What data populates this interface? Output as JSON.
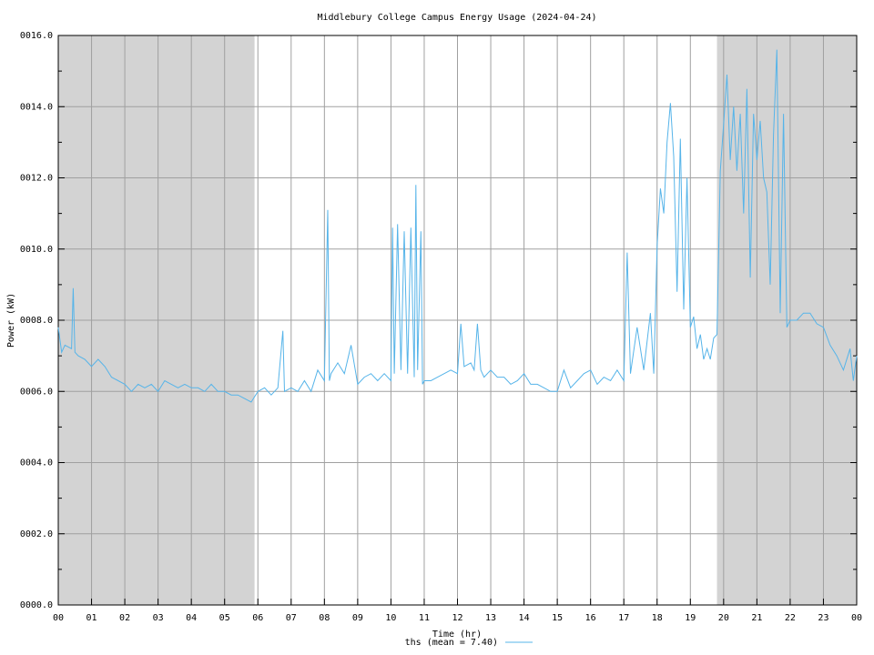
{
  "chart_data": {
    "type": "line",
    "title": "Middlebury College Campus Energy Usage (2024-04-24)",
    "x_label": "Time (hr)",
    "y_label": "Power (kW)",
    "xlim": [
      0,
      24
    ],
    "ylim": [
      0,
      16
    ],
    "xticks": [
      {
        "value": 0,
        "label": "00"
      },
      {
        "value": 1,
        "label": "01"
      },
      {
        "value": 2,
        "label": "02"
      },
      {
        "value": 3,
        "label": "03"
      },
      {
        "value": 4,
        "label": "04"
      },
      {
        "value": 5,
        "label": "05"
      },
      {
        "value": 6,
        "label": "06"
      },
      {
        "value": 7,
        "label": "07"
      },
      {
        "value": 8,
        "label": "08"
      },
      {
        "value": 9,
        "label": "09"
      },
      {
        "value": 10,
        "label": "10"
      },
      {
        "value": 11,
        "label": "11"
      },
      {
        "value": 12,
        "label": "12"
      },
      {
        "value": 13,
        "label": "13"
      },
      {
        "value": 14,
        "label": "14"
      },
      {
        "value": 15,
        "label": "15"
      },
      {
        "value": 16,
        "label": "16"
      },
      {
        "value": 17,
        "label": "17"
      },
      {
        "value": 18,
        "label": "18"
      },
      {
        "value": 19,
        "label": "19"
      },
      {
        "value": 20,
        "label": "20"
      },
      {
        "value": 21,
        "label": "21"
      },
      {
        "value": 22,
        "label": "22"
      },
      {
        "value": 23,
        "label": "23"
      },
      {
        "value": 24,
        "label": "00"
      }
    ],
    "yticks": [
      {
        "value": 0,
        "label": "0000.0"
      },
      {
        "value": 2,
        "label": "0002.0"
      },
      {
        "value": 4,
        "label": "0004.0"
      },
      {
        "value": 6,
        "label": "0006.0"
      },
      {
        "value": 8,
        "label": "0008.0"
      },
      {
        "value": 10,
        "label": "0010.0"
      },
      {
        "value": 12,
        "label": "0012.0"
      },
      {
        "value": 14,
        "label": "0014.0"
      },
      {
        "value": 16,
        "label": "0016.0"
      }
    ],
    "yminorticks": [
      1,
      3,
      5,
      7,
      9,
      11,
      13,
      15
    ],
    "grid": true,
    "shaded_ranges": [
      [
        0,
        5.9
      ],
      [
        19.8,
        24
      ]
    ],
    "shade_color": "#d3d3d3",
    "legend": "bottom",
    "x": [
      0,
      0.1,
      0.2,
      0.4,
      0.45,
      0.5,
      0.6,
      0.8,
      1.0,
      1.2,
      1.4,
      1.6,
      1.8,
      2.0,
      2.2,
      2.4,
      2.6,
      2.8,
      3.0,
      3.2,
      3.4,
      3.6,
      3.8,
      4.0,
      4.2,
      4.4,
      4.6,
      4.8,
      5.0,
      5.2,
      5.4,
      5.6,
      5.8,
      6.0,
      6.2,
      6.4,
      6.6,
      6.75,
      6.8,
      7.0,
      7.2,
      7.4,
      7.6,
      7.8,
      8.0,
      8.1,
      8.15,
      8.2,
      8.4,
      8.6,
      8.8,
      9.0,
      9.2,
      9.4,
      9.6,
      9.8,
      10.0,
      10.05,
      10.1,
      10.2,
      10.3,
      10.4,
      10.5,
      10.6,
      10.7,
      10.75,
      10.8,
      10.9,
      10.95,
      11.0,
      11.2,
      11.4,
      11.6,
      11.8,
      12.0,
      12.1,
      12.2,
      12.4,
      12.5,
      12.6,
      12.7,
      12.8,
      13.0,
      13.2,
      13.4,
      13.6,
      13.8,
      14.0,
      14.2,
      14.4,
      14.6,
      14.8,
      15.0,
      15.2,
      15.4,
      15.6,
      15.8,
      16.0,
      16.2,
      16.4,
      16.6,
      16.8,
      17.0,
      17.1,
      17.2,
      17.4,
      17.6,
      17.8,
      17.9,
      18.0,
      18.1,
      18.2,
      18.3,
      18.4,
      18.5,
      18.6,
      18.7,
      18.8,
      18.9,
      19.0,
      19.1,
      19.2,
      19.3,
      19.4,
      19.5,
      19.6,
      19.7,
      19.8,
      19.9,
      20.0,
      20.1,
      20.2,
      20.3,
      20.4,
      20.5,
      20.6,
      20.7,
      20.8,
      20.9,
      21.0,
      21.1,
      21.2,
      21.3,
      21.4,
      21.5,
      21.6,
      21.7,
      21.8,
      21.9,
      22.0,
      22.2,
      22.4,
      22.6,
      22.8,
      23.0,
      23.2,
      23.4,
      23.6,
      23.8,
      23.9,
      24.0
    ],
    "series": [
      {
        "name": "ths (mean = 7.40)",
        "color": "#56b4e9",
        "values": [
          7.8,
          7.1,
          7.3,
          7.2,
          8.9,
          7.1,
          7.0,
          6.9,
          6.7,
          6.9,
          6.7,
          6.4,
          6.3,
          6.2,
          6.0,
          6.2,
          6.1,
          6.2,
          6.0,
          6.3,
          6.2,
          6.1,
          6.2,
          6.1,
          6.1,
          6.0,
          6.2,
          6.0,
          6.0,
          5.9,
          5.9,
          5.8,
          5.7,
          6.0,
          6.1,
          5.9,
          6.1,
          7.7,
          6.0,
          6.1,
          6.0,
          6.3,
          6.0,
          6.6,
          6.3,
          11.1,
          6.3,
          6.5,
          6.8,
          6.5,
          7.3,
          6.2,
          6.4,
          6.5,
          6.3,
          6.5,
          6.3,
          10.6,
          6.5,
          10.7,
          6.6,
          10.5,
          6.5,
          10.6,
          6.4,
          11.8,
          6.6,
          10.5,
          6.2,
          6.3,
          6.3,
          6.4,
          6.5,
          6.6,
          6.5,
          7.9,
          6.7,
          6.8,
          6.6,
          7.9,
          6.6,
          6.4,
          6.6,
          6.4,
          6.4,
          6.2,
          6.3,
          6.5,
          6.2,
          6.2,
          6.1,
          6.0,
          6.0,
          6.6,
          6.1,
          6.3,
          6.5,
          6.6,
          6.2,
          6.4,
          6.3,
          6.6,
          6.3,
          9.9,
          6.5,
          7.8,
          6.6,
          8.2,
          6.5,
          10.1,
          11.7,
          11.0,
          13.0,
          14.1,
          12.6,
          8.8,
          13.1,
          8.3,
          12.0,
          7.8,
          8.1,
          7.2,
          7.6,
          6.9,
          7.2,
          6.9,
          7.5,
          7.6,
          12.2,
          13.5,
          14.9,
          12.5,
          14.0,
          12.2,
          13.8,
          11.0,
          14.5,
          9.2,
          13.8,
          12.5,
          13.6,
          12.0,
          11.6,
          9.0,
          13.2,
          15.6,
          8.2,
          13.8,
          7.8,
          8.0,
          8.0,
          8.2,
          8.2,
          7.9,
          7.8,
          7.3,
          7.0,
          6.6,
          7.2,
          6.3,
          7.0
        ]
      }
    ]
  }
}
